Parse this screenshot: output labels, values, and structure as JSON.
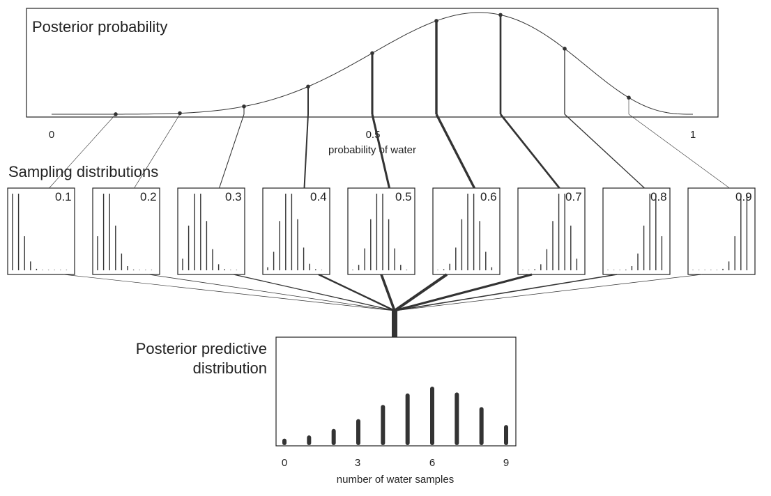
{
  "chart_data": [
    {
      "type": "line",
      "title": "Posterior probability",
      "xlabel": "probability of water",
      "x_ticks": [
        "0",
        "0.5",
        "1"
      ],
      "xlim": [
        0,
        1
      ],
      "x": [
        0.0,
        0.1,
        0.2,
        0.3,
        0.4,
        0.5,
        0.6,
        0.7,
        0.8,
        0.9,
        1.0
      ],
      "y": [
        0.0,
        0.0009,
        0.0164,
        0.0953,
        0.2787,
        0.4922,
        0.5573,
        0.4118,
        0.1468,
        0.0039,
        0.0
      ],
      "marked_points": [
        0.1,
        0.2,
        0.3,
        0.4,
        0.5,
        0.6,
        0.7,
        0.8,
        0.9
      ]
    },
    {
      "type": "bar",
      "title": "Sampling distributions",
      "panels": [
        {
          "p_label": "0.1",
          "p": 0.1
        },
        {
          "p_label": "0.2",
          "p": 0.2
        },
        {
          "p_label": "0.3",
          "p": 0.3
        },
        {
          "p_label": "0.4",
          "p": 0.4
        },
        {
          "p_label": "0.5",
          "p": 0.5
        },
        {
          "p_label": "0.6",
          "p": 0.6
        },
        {
          "p_label": "0.7",
          "p": 0.7
        },
        {
          "p_label": "0.8",
          "p": 0.8
        },
        {
          "p_label": "0.9",
          "p": 0.9
        }
      ],
      "categories": [
        0,
        1,
        2,
        3,
        4,
        5,
        6,
        7,
        8,
        9
      ]
    },
    {
      "type": "bar",
      "title": "Posterior predictive distribution",
      "title_lines": [
        "Posterior predictive",
        "distribution"
      ],
      "xlabel": "number of water samples",
      "x_ticks": [
        "0",
        "3",
        "6",
        "9"
      ],
      "categories": [
        0,
        1,
        2,
        3,
        4,
        5,
        6,
        7,
        8,
        9
      ],
      "values": [
        0.0094,
        0.0222,
        0.0483,
        0.0876,
        0.1447,
        0.1909,
        0.2181,
        0.1947,
        0.1361,
        0.0638
      ]
    }
  ],
  "colors": {
    "ink": "#333333",
    "frame": "#222222",
    "background": "#ffffff"
  }
}
